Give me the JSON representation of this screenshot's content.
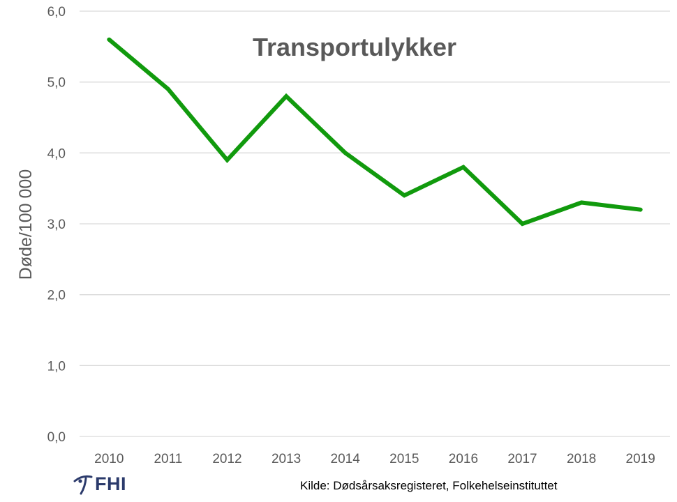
{
  "chart_data": {
    "type": "line",
    "title": "Transportulykker",
    "ylabel": "Døde/100 000",
    "xlabel": "",
    "categories": [
      "2010",
      "2011",
      "2012",
      "2013",
      "2014",
      "2015",
      "2016",
      "2017",
      "2018",
      "2019"
    ],
    "series": [
      {
        "values": [
          5.6,
          4.9,
          3.9,
          4.8,
          4.0,
          3.4,
          3.8,
          3.0,
          3.3,
          3.2
        ]
      }
    ],
    "yticks": [
      "0,0",
      "1,0",
      "2,0",
      "3,0",
      "4,0",
      "5,0",
      "6,0"
    ],
    "ylim": [
      0,
      6
    ],
    "grid": true,
    "legend": "none",
    "colors": {
      "line": "#119a0d",
      "grid": "#d9d9d9",
      "text": "#595959"
    }
  },
  "source": "Kilde: Dødsårsaksregisteret, Folkehelseinstituttet",
  "logo": {
    "text": "FHI",
    "icon": "fhi-logo-icon",
    "color": "#2b3a6b"
  }
}
